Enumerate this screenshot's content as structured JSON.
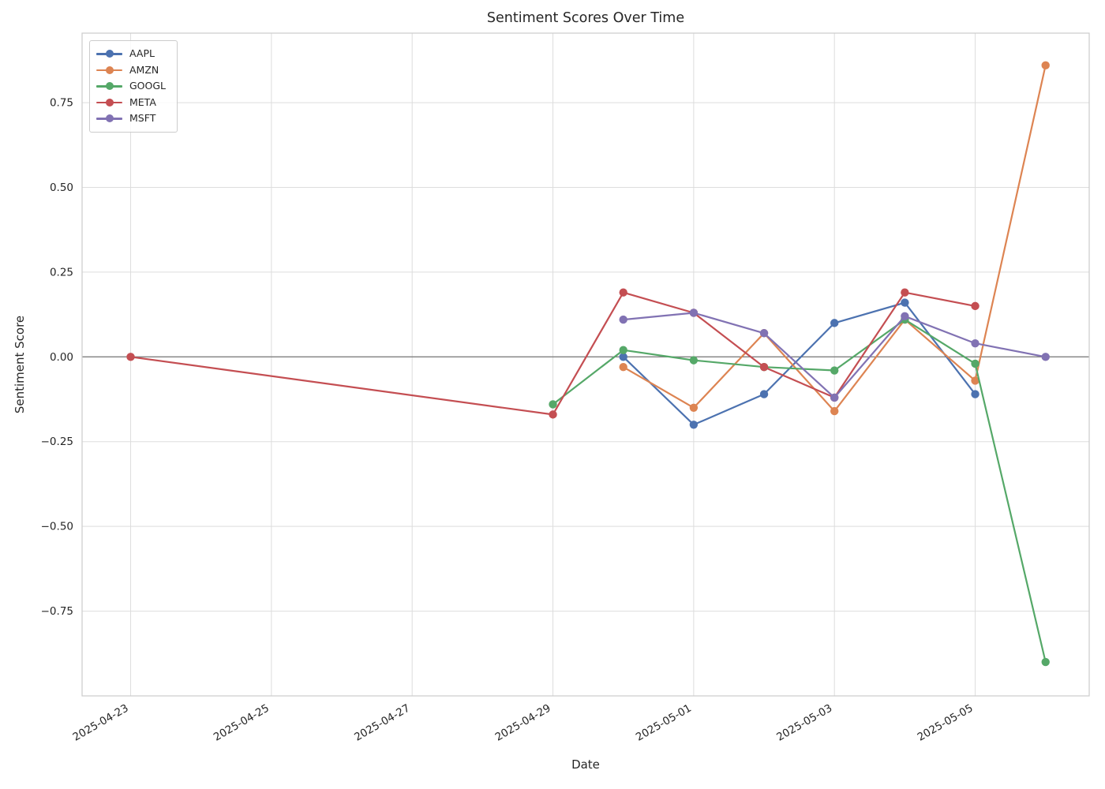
{
  "figure": {
    "title": "Sentiment Scores Over Time",
    "xlabel": "Date",
    "ylabel": "Sentiment Score"
  },
  "style": {
    "background": "#ffffff",
    "grid_color": "#dddddd",
    "spine_color": "#cccccc",
    "zero_line_color": "#808080",
    "text_color": "#262626"
  },
  "chart_data": {
    "type": "line",
    "title": "Sentiment Scores Over Time",
    "xlabel": "Date",
    "ylabel": "Sentiment Score",
    "grid": true,
    "zero_line": true,
    "legend_position": "upper left",
    "x": [
      "2025-04-23",
      "2025-04-29",
      "2025-04-30",
      "2025-05-01",
      "2025-05-02",
      "2025-05-03",
      "2025-05-04",
      "2025-05-05",
      "2025-05-06"
    ],
    "series": [
      {
        "name": "AAPL",
        "color": "#4C72B0",
        "values": [
          null,
          null,
          0.0,
          -0.2,
          -0.11,
          0.1,
          0.16,
          -0.11,
          null
        ]
      },
      {
        "name": "AMZN",
        "color": "#DD8452",
        "values": [
          null,
          null,
          -0.03,
          -0.15,
          0.07,
          -0.16,
          0.11,
          -0.07,
          0.86
        ]
      },
      {
        "name": "GOOGL",
        "color": "#55A868",
        "values": [
          null,
          -0.14,
          0.02,
          -0.01,
          -0.03,
          -0.04,
          0.11,
          -0.02,
          -0.9
        ]
      },
      {
        "name": "META",
        "color": "#C44E52",
        "values": [
          0.0,
          -0.17,
          0.19,
          0.13,
          -0.03,
          -0.12,
          0.19,
          0.15,
          null
        ]
      },
      {
        "name": "MSFT",
        "color": "#8172B3",
        "values": [
          null,
          null,
          0.11,
          0.13,
          0.07,
          -0.12,
          0.12,
          0.04,
          0.0
        ]
      }
    ],
    "x_tick_labels": [
      "2025-04-23",
      "2025-04-25",
      "2025-04-27",
      "2025-04-29",
      "2025-05-01",
      "2025-05-03",
      "2025-05-05"
    ],
    "y_ticks": [
      0.75,
      0.5,
      0.25,
      0.0,
      -0.25,
      -0.5,
      -0.75
    ],
    "y_tick_labels": [
      "0.75",
      "0.50",
      "0.25",
      "0.00",
      "−0.25",
      "−0.50",
      "−0.75"
    ],
    "ylim": [
      -1.0,
      0.955
    ],
    "xlim_days": [
      -0.69,
      13.62
    ]
  }
}
